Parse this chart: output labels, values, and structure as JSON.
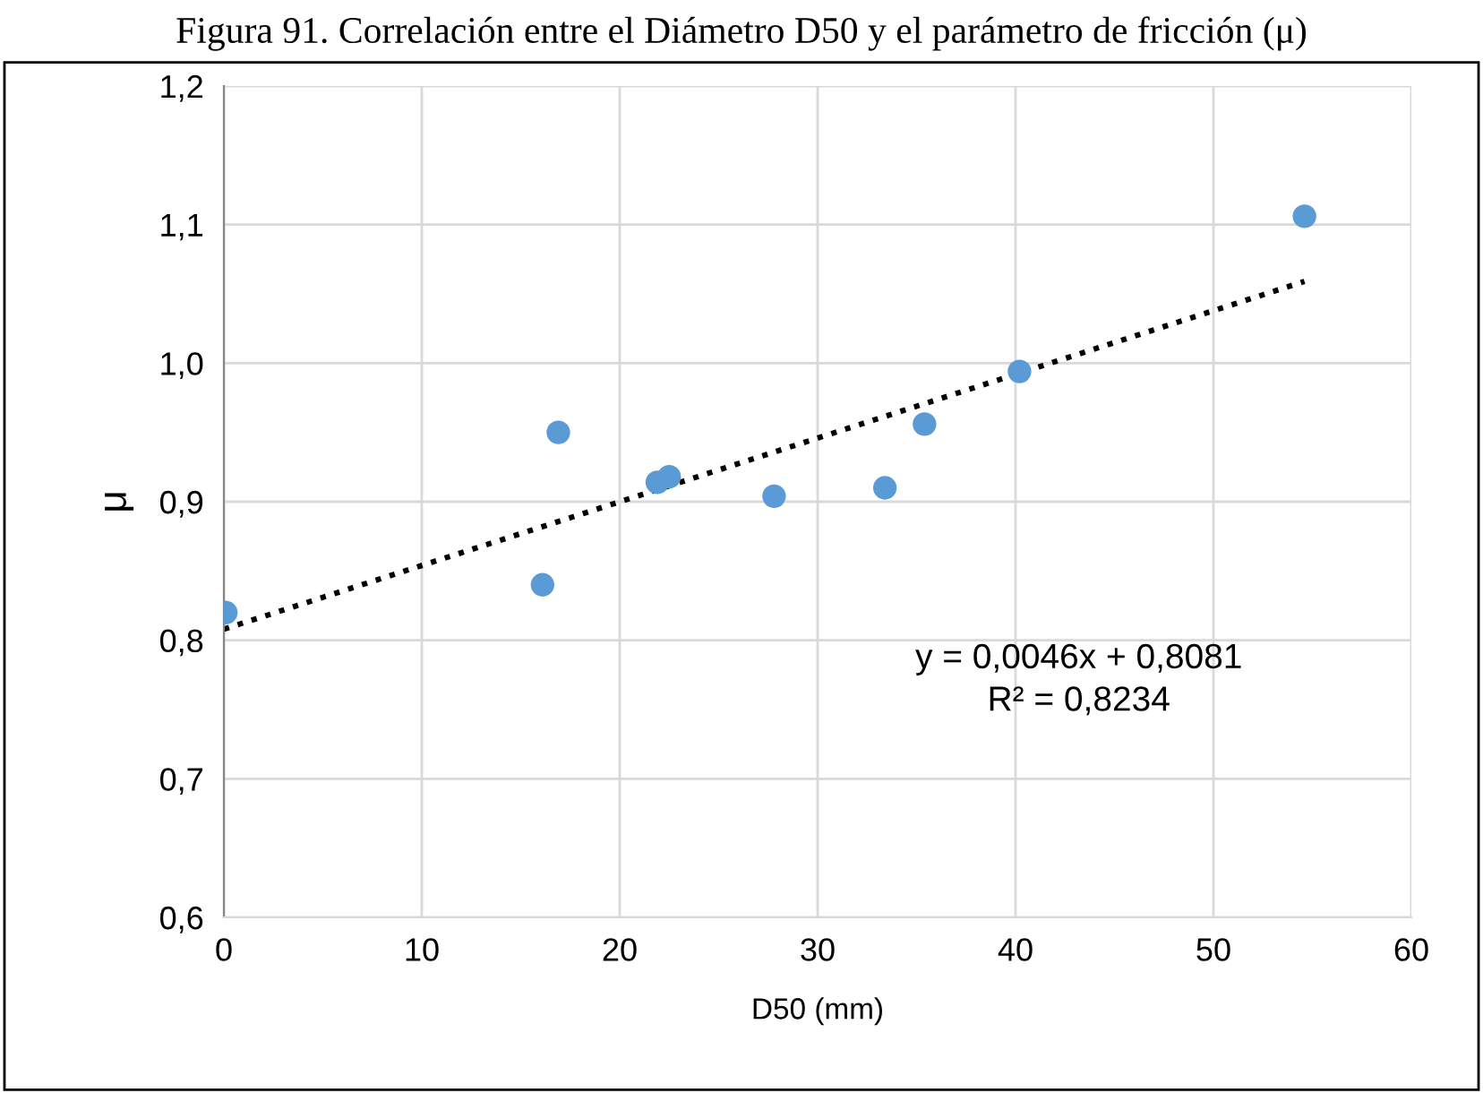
{
  "chart_data": {
    "type": "scatter",
    "title": "Figura 91. Correlación entre el Diámetro D50 y el parámetro de fricción (μ)",
    "xlabel": "D50 (mm)",
    "ylabel": "μ",
    "series": [
      {
        "color": "#5b9bd5",
        "marker": "circle",
        "x": [
          0.1,
          16.1,
          16.9,
          21.9,
          22.5,
          27.8,
          33.4,
          35.4,
          40.2,
          54.6
        ],
        "values": [
          0.82,
          0.84,
          0.95,
          0.914,
          0.918,
          0.904,
          0.91,
          0.956,
          0.994,
          1.106
        ]
      },
      {
        "type": "line",
        "color": "#000000",
        "line_style": "dotted",
        "marker": "none",
        "x": [
          0,
          54.6
        ],
        "values": [
          0.808,
          1.059
        ]
      }
    ],
    "annotations": [
      "y = 0,0046x + 0,8081\nR² = 0,8234"
    ],
    "xlim": [
      0,
      60
    ],
    "xticks": [
      0,
      10,
      20,
      30,
      40,
      50,
      60
    ],
    "ylim": [
      0.6,
      1.2
    ],
    "yticks": [
      {
        "value": 0.6,
        "label": "0,6"
      },
      {
        "value": 0.7,
        "label": "0,7"
      },
      {
        "value": 0.8,
        "label": "0,8"
      },
      {
        "value": 0.9,
        "label": "0,9"
      },
      {
        "value": 1.0,
        "label": "1,0"
      },
      {
        "value": 1.1,
        "label": "1,1"
      },
      {
        "value": 1.2,
        "label": "1,2"
      }
    ],
    "grid": true,
    "legend": false
  }
}
